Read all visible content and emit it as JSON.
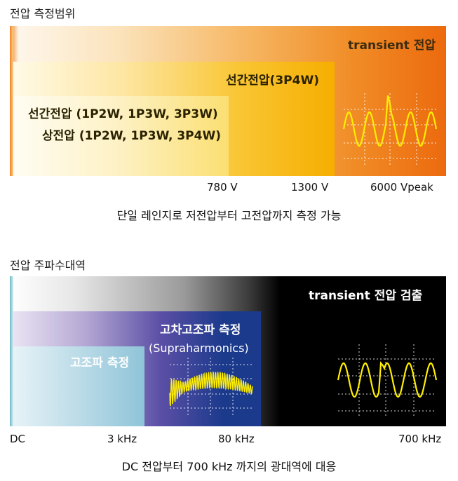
{
  "section1": {
    "title": "전압 측정범위",
    "transient_label": "transient 전압",
    "line_voltage_3p4w": "선간전압(3P4W)",
    "line_voltage_multi": "선간전압 (1P2W, 1P3W, 3P3W)",
    "phase_voltage": "상전압 (1P2W, 1P3W, 3P4W)",
    "ticks": [
      "780 V",
      "1300 V",
      "6000 Vpeak"
    ],
    "caption": "단일 레인지로 저전압부터 고전압까지 측정 가능"
  },
  "section2": {
    "title": "전압 주파수대역",
    "transient_label": "transient 전압 검출",
    "high_order_label": "고차고조파 측정",
    "supraharmonics_label": "(Supraharmonics)",
    "harmonics_label": "고조파 측정",
    "ticks": [
      "DC",
      "3 kHz",
      "80 kHz",
      "700 kHz"
    ],
    "caption": "DC 전압부터 700 kHz 까지의 광대역에 대응"
  },
  "colors": {
    "orange": "#ec6a0e",
    "amber": "#f7b100",
    "yellow_box": "#fbd84e",
    "navy": "#1b3a8c",
    "light_blue": "#8fc4d8",
    "wave": "#ffee00"
  }
}
